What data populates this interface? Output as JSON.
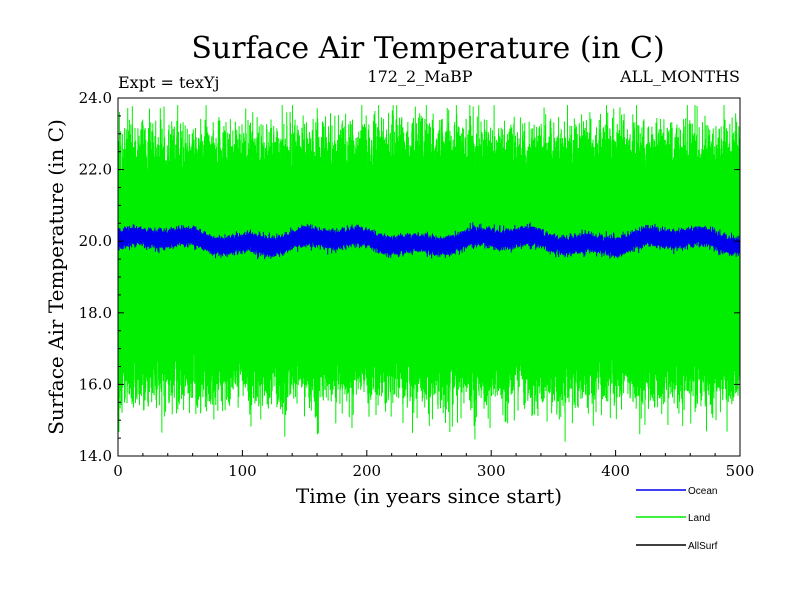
{
  "chart_data": {
    "type": "line",
    "title": "Surface Air Temperature (in C)",
    "experiment_label": "Expt = texYj",
    "subtitle_center": "172_2_MaBP",
    "subtitle_right": "ALL_MONTHS",
    "xlabel": "Time (in years since start)",
    "ylabel": "Surface Air Temperature (in C)",
    "xlim": [
      0,
      500
    ],
    "ylim": [
      14.0,
      24.0
    ],
    "x_ticks": [
      0,
      100,
      200,
      300,
      400,
      500
    ],
    "x_tick_labels": [
      "0",
      "100",
      "200",
      "300",
      "400",
      "500"
    ],
    "y_ticks": [
      14,
      16,
      18,
      20,
      22,
      24
    ],
    "y_tick_labels": [
      "14.0",
      "16.0",
      "18.0",
      "20.0",
      "22.0",
      "24.0"
    ],
    "grid": false,
    "legend_position": "bottom-right, below plot",
    "series": [
      {
        "name": "Land",
        "color": "#00ee00",
        "description_range": [
          14.4,
          23.8
        ],
        "typical_range": [
          15.5,
          23.0
        ],
        "mean": 19.2
      },
      {
        "name": "Ocean",
        "color": "#0000ee",
        "description_range": [
          19.5,
          20.6
        ],
        "mean": 20.0
      },
      {
        "name": "AllSurf",
        "color": "#000000",
        "description_range": [
          18.5,
          20.5
        ],
        "mean": 19.5
      }
    ],
    "legend": [
      {
        "label": "Ocean",
        "color": "#0000ee"
      },
      {
        "label": "Land",
        "color": "#00ee00"
      },
      {
        "label": "AllSurf",
        "color": "#000000"
      }
    ]
  }
}
